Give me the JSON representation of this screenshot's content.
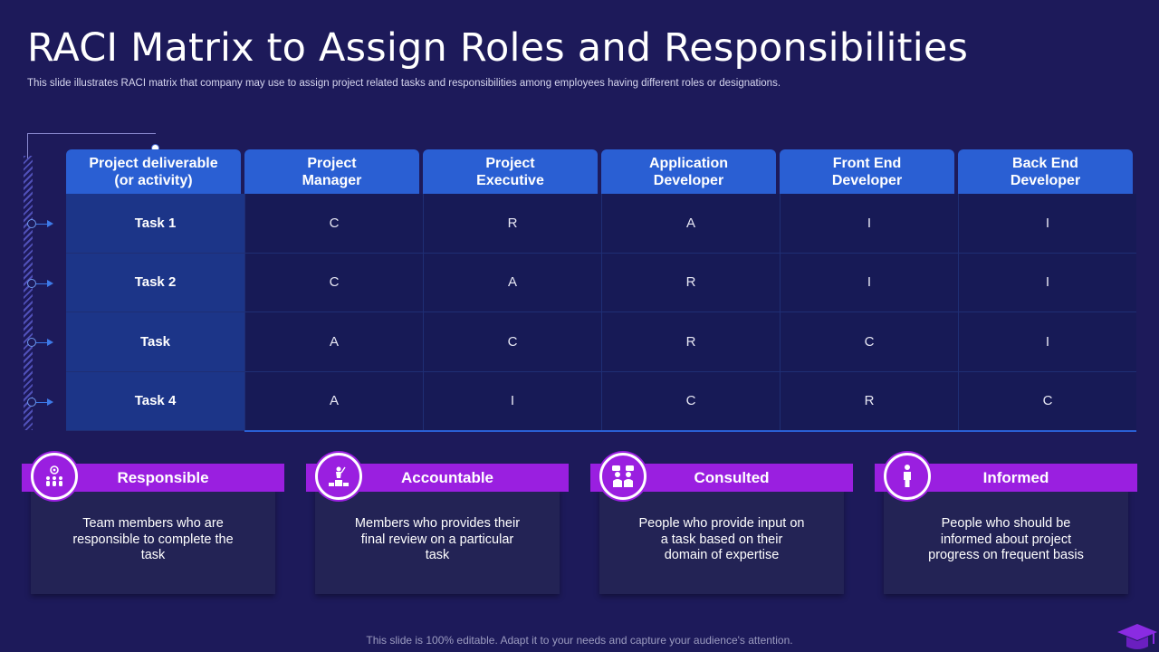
{
  "title": "RACI Matrix to Assign Roles and Responsibilities",
  "subtitle": "This slide illustrates RACI matrix that company may use to assign project related tasks and responsibilities among employees having different roles or designations.",
  "matrix": {
    "headers": [
      "Project deliverable\n(or activity)",
      "Project\nManager",
      "Project\nExecutive",
      "Application\nDeveloper",
      "Front End\nDeveloper",
      "Back End\nDeveloper"
    ],
    "rows": [
      {
        "task": "Task 1",
        "values": [
          "C",
          "R",
          "A",
          "I",
          "I"
        ]
      },
      {
        "task": "Task 2",
        "values": [
          "C",
          "A",
          "R",
          "I",
          "I"
        ]
      },
      {
        "task": "Task",
        "values": [
          "A",
          "C",
          "R",
          "C",
          "I"
        ]
      },
      {
        "task": "Task 4",
        "values": [
          "A",
          "I",
          "C",
          "R",
          "C"
        ]
      }
    ]
  },
  "legend": [
    {
      "label": "Responsible",
      "icon": "team-gear-icon",
      "description": "Team members who are responsible to complete the task"
    },
    {
      "label": "Accountable",
      "icon": "podium-leader-icon",
      "description": "Members who provides their final review on a particular task"
    },
    {
      "label": "Consulted",
      "icon": "discussion-people-icon",
      "description": "People who provide input on a task based on their domain of expertise"
    },
    {
      "label": "Informed",
      "icon": "person-icon",
      "description": "People who should be informed about project progress on frequent basis"
    }
  ],
  "footer": "This slide is 100% editable. Adapt it to your needs and capture your audience's attention.",
  "colors": {
    "background": "#1d1a5a",
    "header_blue": "#2a5fd3",
    "task_column": "#1c3588",
    "legend_purple": "#9a1fe0"
  }
}
